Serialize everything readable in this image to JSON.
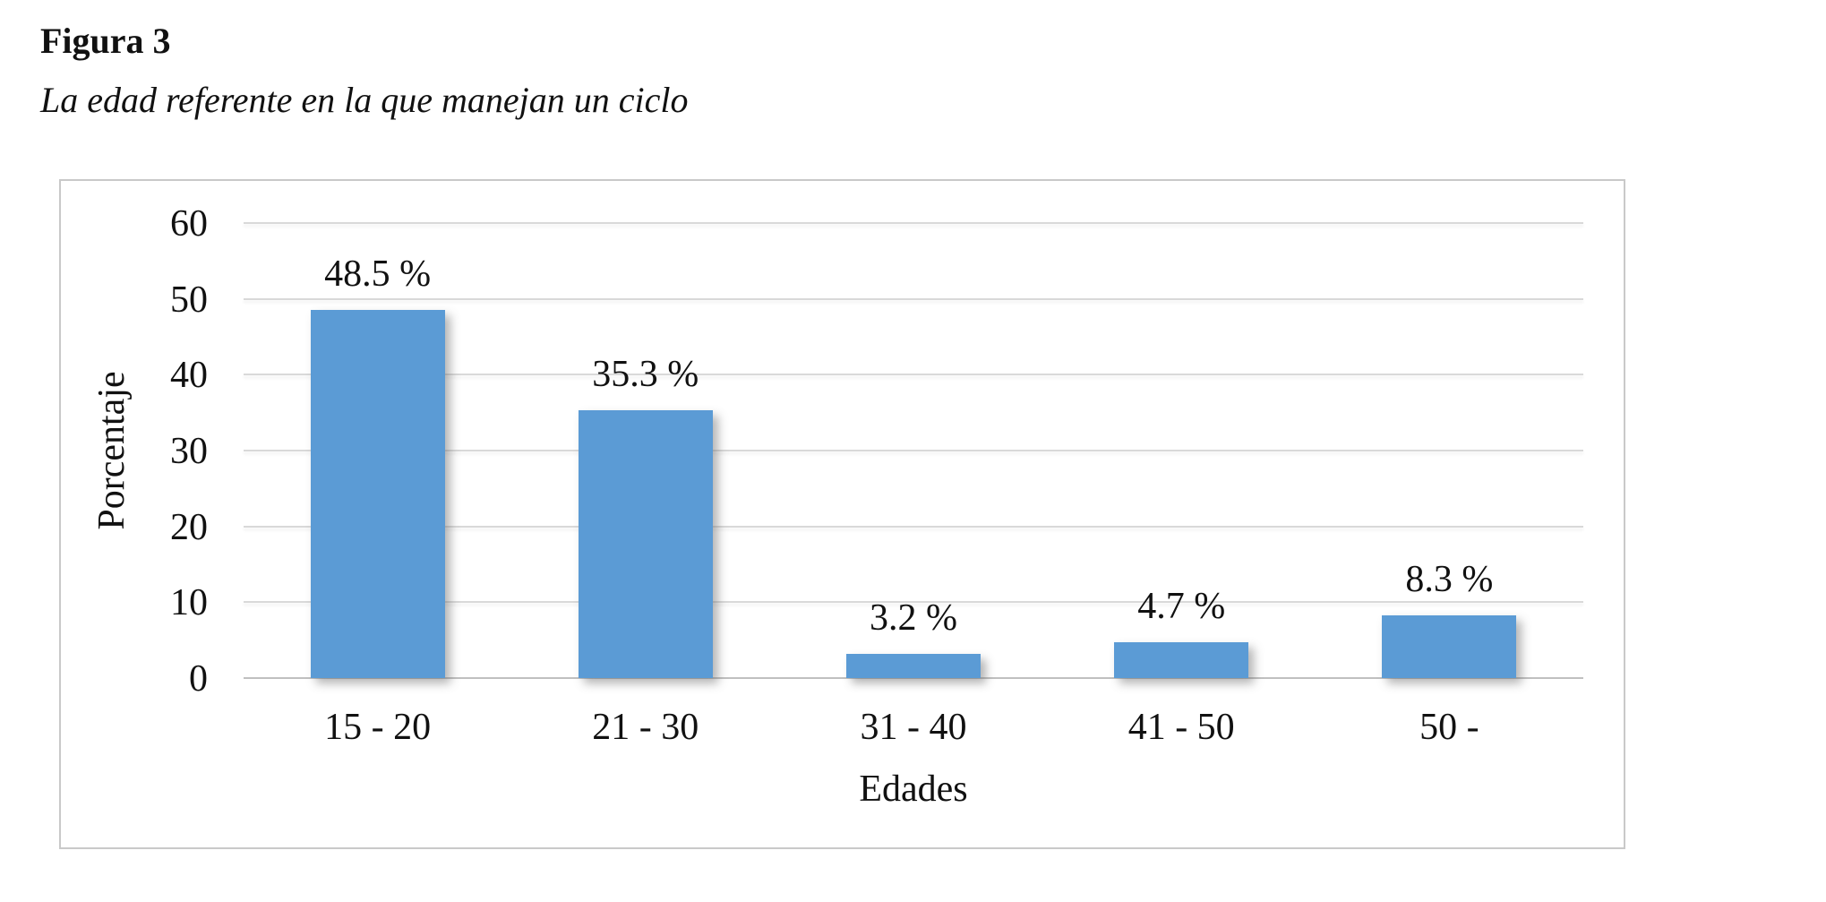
{
  "figure": {
    "label": "Figura 3",
    "caption": "La edad referente en la que manejan un ciclo"
  },
  "chart_data": {
    "type": "bar",
    "title": "",
    "categories": [
      "15 - 20",
      "21 - 30",
      "31 - 40",
      "41 - 50",
      "50 -"
    ],
    "values": [
      48.5,
      35.3,
      3.2,
      4.7,
      8.3
    ],
    "value_labels": [
      "48.5 %",
      "35.3 %",
      "3.2 %",
      "4.7 %",
      "8.3 %"
    ],
    "xlabel": "Edades",
    "ylabel": "Porcentaje",
    "ylim": [
      0,
      60
    ],
    "yticks": [
      0,
      10,
      20,
      30,
      40,
      50,
      60
    ],
    "grid": true,
    "legend_position": "none",
    "colors": {
      "bar": "#5b9bd5",
      "gridline": "#d9d9d9",
      "axis_line": "#c0c0c0",
      "frame_border": "#c9c9c9",
      "text": "#111111"
    }
  }
}
